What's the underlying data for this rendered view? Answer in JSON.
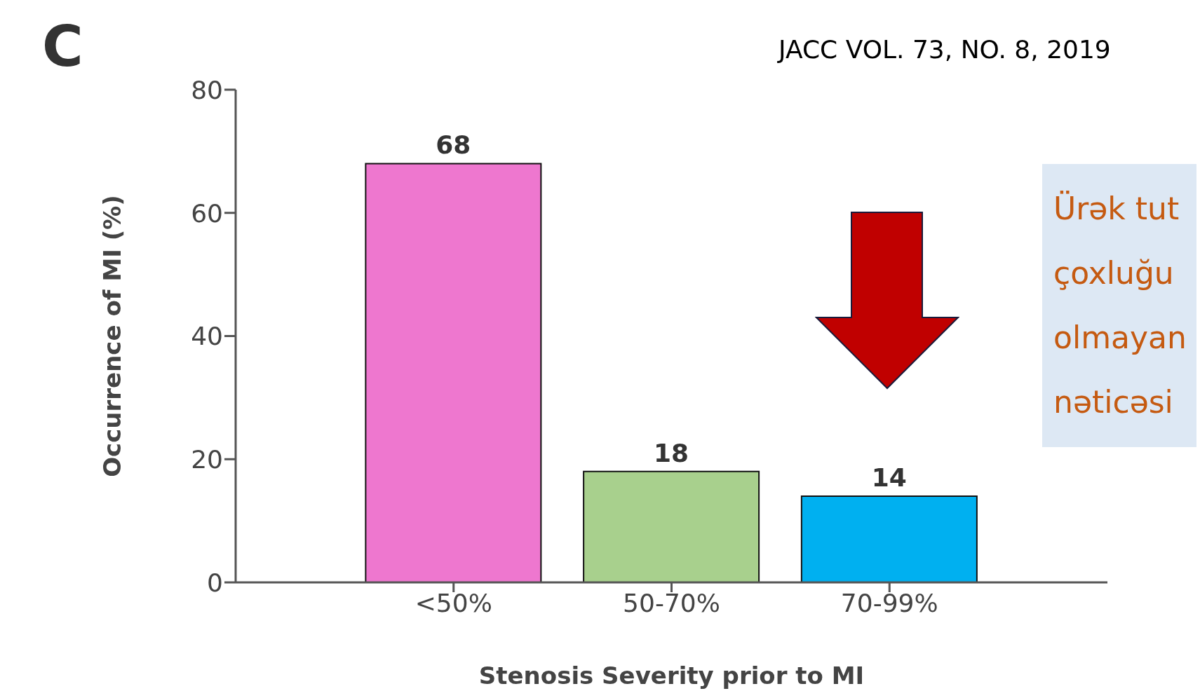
{
  "chart_data": {
    "type": "bar",
    "title": "C",
    "xlabel": "Stenosis Severity prior to MI",
    "ylabel": "Occurrence of MI (%)",
    "categories": [
      "<50%",
      "50-70%",
      "70-99%"
    ],
    "values": [
      68,
      18,
      14
    ],
    "colors": [
      "#ee77cf",
      "#a8d08d",
      "#00b0f0"
    ],
    "ylim": [
      0,
      80
    ],
    "yticks": [
      0,
      20,
      40,
      60,
      80
    ],
    "grid": false,
    "data_labels": true,
    "annotations": [
      "JACC VOL. 73, NO. 8, 2019",
      "Ürək tut",
      "çoxluğu",
      "olmayan",
      "nəticəsi"
    ]
  }
}
